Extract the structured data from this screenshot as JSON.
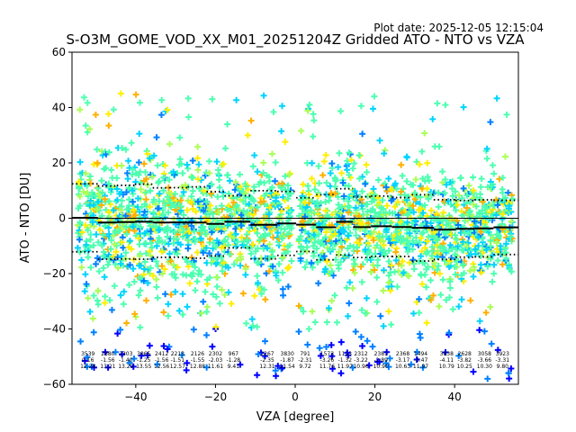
{
  "chart_data": {
    "type": "scatter",
    "plot_date_label": "Plot date: 2025-12-05 12:15:04",
    "title": "S-O3M_GOME_VOD_XX_M01_20251204Z Gridded ATO - NTO vs VZA",
    "xlabel": "VZA [degree]",
    "ylabel": "ATO - NTO [DU]",
    "xlim": [
      -56,
      56
    ],
    "ylim": [
      -60,
      60
    ],
    "xticks": [
      -40,
      -20,
      0,
      20,
      40
    ],
    "yticks": [
      -60,
      -40,
      -20,
      0,
      20,
      40,
      60
    ],
    "marker": "+",
    "colors": [
      "#0000ff",
      "#0080ff",
      "#00d4ff",
      "#4dffb0",
      "#aaff55",
      "#ffee00",
      "#ffb000"
    ],
    "bin_stats": [
      {
        "vza": -52,
        "n": "3539",
        "mean": "0.16",
        "std": "12.28"
      },
      {
        "vza": -47,
        "n": "2880",
        "mean": "-1.56",
        "std": "13.21"
      },
      {
        "vza": -42.5,
        "n": "2303",
        "mean": "-1.40",
        "std": "13.29"
      },
      {
        "vza": -38,
        "n": "3065",
        "mean": "-1.25",
        "std": "13.55"
      },
      {
        "vza": -33.5,
        "n": "2412",
        "mean": "-1.56",
        "std": "12.56"
      },
      {
        "vza": -29.5,
        "n": "2213",
        "mean": "-1.51",
        "std": "12.57"
      },
      {
        "vza": -24.5,
        "n": "2126",
        "mean": "-1.55",
        "std": "12.88"
      },
      {
        "vza": -20,
        "n": "2302",
        "mean": "-2.03",
        "std": "11.61"
      },
      {
        "vza": -15.5,
        "n": "967",
        "mean": "-1.28",
        "std": "9.41"
      },
      {
        "vza": -7,
        "n": "2267",
        "mean": "-2.35",
        "std": "12.31"
      },
      {
        "vza": -2,
        "n": "3830",
        "mean": "-1.87",
        "std": "11.54"
      },
      {
        "vza": 2.5,
        "n": "791",
        "mean": "-2.31",
        "std": "9.72"
      },
      {
        "vza": 8,
        "n": "1573",
        "mean": "-3.26",
        "std": "11.76"
      },
      {
        "vza": 12.5,
        "n": "1113",
        "mean": "-1.32",
        "std": "11.97"
      },
      {
        "vza": 16.5,
        "n": "2312",
        "mean": "-3.22",
        "std": "10.96"
      },
      {
        "vza": 21.5,
        "n": "2381",
        "mean": "-2.89",
        "std": "10.90"
      },
      {
        "vza": 27,
        "n": "2368",
        "mean": "-3.17",
        "std": "10.63"
      },
      {
        "vza": 31.5,
        "n": "1494",
        "mean": "-3.47",
        "std": "11.97"
      },
      {
        "vza": 38,
        "n": "3838",
        "mean": "-4.11",
        "std": "10.79"
      },
      {
        "vza": 42.5,
        "n": "2628",
        "mean": "-3.82",
        "std": "10.25"
      },
      {
        "vza": 47.5,
        "n": "3058",
        "mean": "-3.66",
        "std": "10.30"
      },
      {
        "vza": 52,
        "n": "3923",
        "mean": "-3.31",
        "std": "9.80"
      }
    ]
  }
}
